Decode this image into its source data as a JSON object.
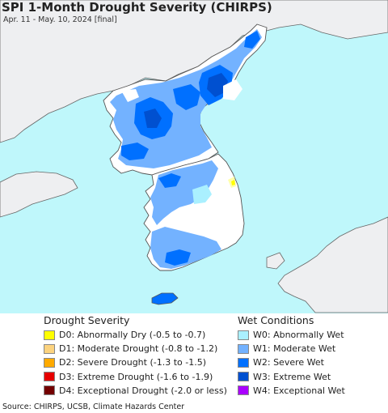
{
  "title": "SPI 1-Month Drought Severity (CHIRPS)",
  "subtitle": "Apr. 11 - May. 10, 2024 [final]",
  "colors": {
    "sea": "#bff7fb",
    "land_outside": "#eeeff1",
    "land_dry": "#ffffff",
    "border": "#555555"
  },
  "drought_legend": {
    "title": "Drought Severity",
    "items": [
      {
        "code": "D0",
        "label": "D0: Abnormally Dry (-0.5 to -0.7)",
        "color": "#ffff00"
      },
      {
        "code": "D1",
        "label": "D1: Moderate Drought (-0.8 to -1.2)",
        "color": "#fcd37f"
      },
      {
        "code": "D2",
        "label": "D2: Severe Drought (-1.3 to -1.5)",
        "color": "#ffaa00"
      },
      {
        "code": "D3",
        "label": "D3: Extreme Drought (-1.6 to -1.9)",
        "color": "#e60000"
      },
      {
        "code": "D4",
        "label": "D4: Exceptional Drought (-2.0 or less)",
        "color": "#730000"
      }
    ]
  },
  "wet_legend": {
    "title": "Wet Conditions",
    "items": [
      {
        "code": "W0",
        "label": "W0: Abnormally Wet",
        "color": "#aaf0ff"
      },
      {
        "code": "W1",
        "label": "W1: Moderate Wet",
        "color": "#73b2ff"
      },
      {
        "code": "W2",
        "label": "W2: Severe Wet",
        "color": "#0070ff"
      },
      {
        "code": "W3",
        "label": "W3: Extreme Wet",
        "color": "#0050d0"
      },
      {
        "code": "W4",
        "label": "W4: Exceptional Wet",
        "color": "#aa00ff"
      }
    ]
  },
  "source": "Source: CHIRPS, UCSB, Climate Hazards Center"
}
